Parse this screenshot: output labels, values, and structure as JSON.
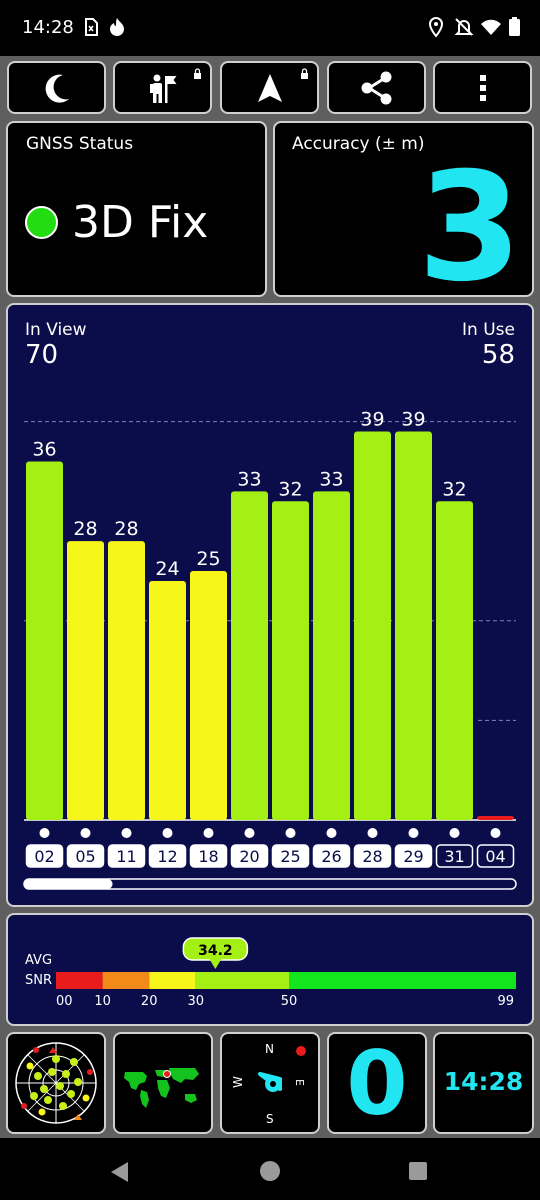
{
  "status_bar": {
    "time": "14:28",
    "icons": [
      "sim-card-x-icon",
      "fire-icon",
      "location-pin-icon",
      "bell-off-icon",
      "wifi-icon",
      "battery-icon"
    ]
  },
  "toolbar": {
    "buttons": [
      {
        "name": "night-mode-button",
        "icon": "moon-icon"
      },
      {
        "name": "hike-mode-button",
        "icon": "hiker-flag-icon",
        "locked": true
      },
      {
        "name": "navigation-button",
        "icon": "navigation-arrow-icon",
        "locked": true
      },
      {
        "name": "share-button",
        "icon": "share-icon"
      },
      {
        "name": "menu-button",
        "icon": "more-vertical-icon"
      }
    ]
  },
  "gnss_status": {
    "label": "GNSS Status",
    "value": "3D Fix",
    "indicator_color": "#22dd11"
  },
  "accuracy": {
    "label": "Accuracy (± m)",
    "value": "3",
    "color": "#22e5f2"
  },
  "satellites": {
    "in_view_label": "In View",
    "in_view": "70",
    "in_use_label": "In Use",
    "in_use": "58"
  },
  "chart_data": {
    "type": "bar",
    "categories": [
      "02",
      "05",
      "11",
      "12",
      "18",
      "20",
      "25",
      "26",
      "28",
      "29",
      "31",
      "04"
    ],
    "values": [
      36,
      28,
      28,
      24,
      25,
      33,
      32,
      33,
      39,
      39,
      32,
      0
    ],
    "value_labels": [
      "36",
      "28",
      "28",
      "24",
      "25",
      "33",
      "32",
      "33",
      "39",
      "39",
      "32",
      ""
    ],
    "in_use": [
      true,
      true,
      true,
      true,
      true,
      true,
      true,
      true,
      true,
      true,
      false,
      false
    ],
    "ylim": [
      0,
      50
    ],
    "gridlines": [
      20,
      40
    ],
    "colors": {
      "high": "#a4ef14",
      "mid": "#f6f61a",
      "low": "#e81c1c"
    },
    "scroll_fraction": 0.18
  },
  "snr": {
    "label_avg": "AVG",
    "label_snr": "SNR",
    "avg": 34.2,
    "avg_label": "34.2",
    "range": [
      0,
      99
    ],
    "ticks": [
      {
        "value": 0,
        "label": "00"
      },
      {
        "value": 10,
        "label": "10"
      },
      {
        "value": 20,
        "label": "20"
      },
      {
        "value": 30,
        "label": "30"
      },
      {
        "value": 50,
        "label": "50"
      },
      {
        "value": 99,
        "label": "99"
      }
    ],
    "segments": [
      {
        "from": 0,
        "to": 10,
        "color": "#e81c1c"
      },
      {
        "from": 10,
        "to": 20,
        "color": "#f28a1a"
      },
      {
        "from": 20,
        "to": 30,
        "color": "#f6f61a"
      },
      {
        "from": 30,
        "to": 50,
        "color": "#a4ef14"
      },
      {
        "from": 50,
        "to": 99,
        "color": "#14e61e"
      }
    ]
  },
  "bottom_tiles": {
    "compass": {
      "n": "N",
      "e": "E",
      "s": "S",
      "w": "W"
    },
    "speed": "0",
    "clock": "14:28",
    "accent_color": "#22e5f2"
  }
}
